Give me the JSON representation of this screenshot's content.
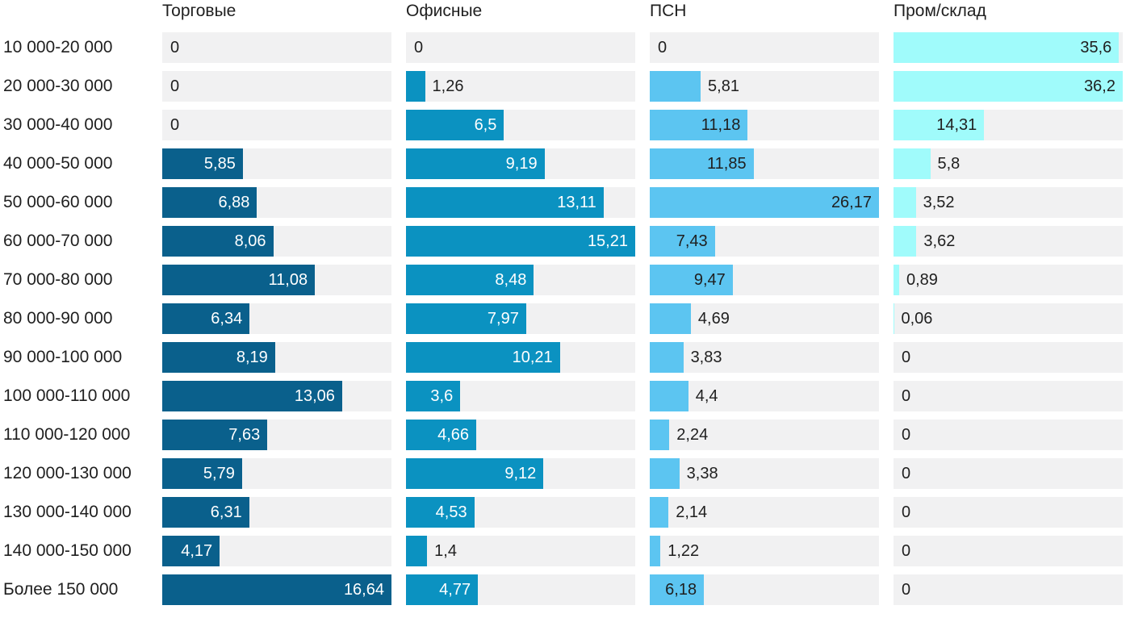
{
  "chart_data": {
    "type": "bar",
    "orientation": "horizontal",
    "grid": false,
    "legend_position": "column-headers",
    "track_color": "#f1f1f2",
    "text_color": "#1f1f1f",
    "decimal_separator": ",",
    "note": "each column scaled independently so its max value fills the track",
    "categories": [
      "10 000-20 000",
      "20 000-30 000",
      "30 000-40 000",
      "40 000-50 000",
      "50 000-60 000",
      "60 000-70 000",
      "70 000-80 000",
      "80 000-90 000",
      "90 000-100 000",
      "100 000-110 000",
      "110 000-120 000",
      "120 000-130 000",
      "130 000-140 000",
      "140 000-150 000",
      "Более 150 000"
    ],
    "series": [
      {
        "name": "Торговые",
        "color": "#0a608c",
        "label_inside_color": "#ffffff",
        "axis_max": 16.64,
        "values": [
          0,
          0,
          0,
          5.85,
          6.88,
          8.06,
          11.08,
          6.34,
          8.19,
          13.06,
          7.63,
          5.79,
          6.31,
          4.17,
          16.64
        ]
      },
      {
        "name": "Офисные",
        "color": "#0b92c1",
        "label_inside_color": "#ffffff",
        "axis_max": 15.21,
        "values": [
          0,
          1.26,
          6.5,
          9.19,
          13.11,
          15.21,
          8.48,
          7.97,
          10.21,
          3.6,
          4.66,
          9.12,
          4.53,
          1.4,
          4.77
        ]
      },
      {
        "name": "ПСН",
        "color": "#5cc5f1",
        "label_inside_color": "#1f1f1f",
        "axis_max": 26.17,
        "values": [
          0,
          5.81,
          11.18,
          11.85,
          26.17,
          7.43,
          9.47,
          4.69,
          3.83,
          4.4,
          2.24,
          3.38,
          2.14,
          1.22,
          6.18
        ]
      },
      {
        "name": "Пром/склад",
        "color": "#a0fbfb",
        "label_inside_color": "#1f1f1f",
        "axis_max": 36.2,
        "values": [
          35.6,
          36.2,
          14.31,
          5.8,
          3.52,
          3.62,
          0.89,
          0.06,
          0,
          0,
          0,
          0,
          0,
          0,
          0
        ]
      }
    ]
  }
}
